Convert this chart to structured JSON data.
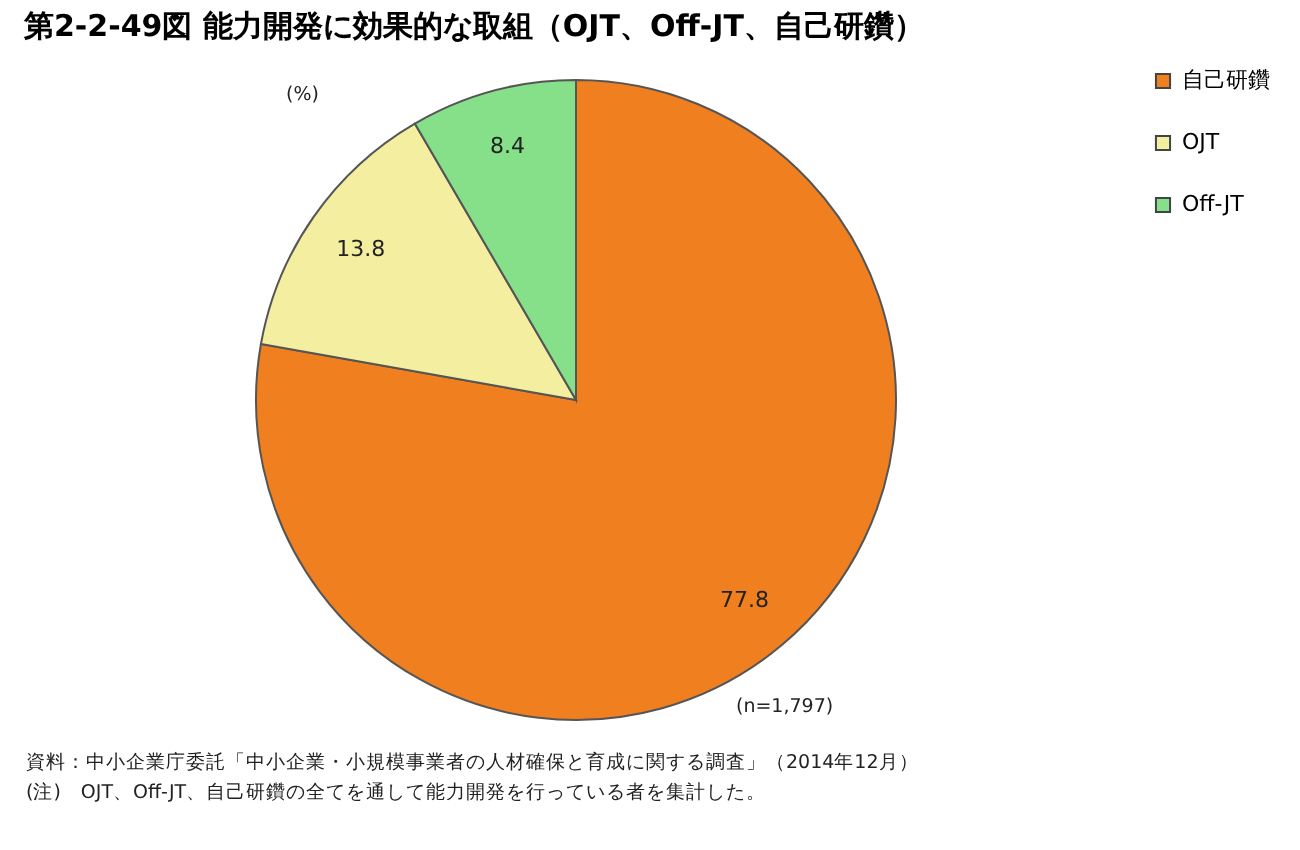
{
  "chart_data": {
    "type": "pie",
    "title": "第2-2-49図 能力開発に効果的な取組（OJT、Off-JT、自己研鑽）",
    "categories": [
      "自己研鑽",
      "OJT",
      "Off-JT"
    ],
    "values": [
      77.8,
      13.8,
      8.4
    ],
    "colors": [
      "#f07f1f",
      "#f3eea0",
      "#86e08a"
    ],
    "data_labels": true,
    "legend": "right",
    "annotations": [
      "(%)",
      "(n=1,797)",
      "資料：中小企業庁委託「中小企業・小規模事業者の人材確保と育成に関する調査」（2014年12月）",
      "(注)　OJT、Off-JT、自己研鑽の全てを通して能力開発を行っている者を集計した。"
    ]
  }
}
